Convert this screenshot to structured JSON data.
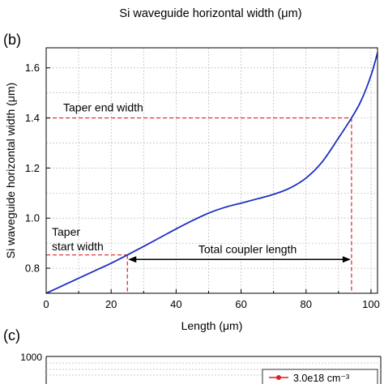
{
  "top_fragment": {
    "xlabel": "Si waveguide horizontal width (μm)"
  },
  "panel_b": {
    "label": "(b)",
    "annotations": {
      "taper_end": "Taper end width",
      "taper_start_line1": "Taper",
      "taper_start_line2": "start width",
      "total_length": "Total coupler length"
    }
  },
  "panel_c": {
    "label": "(c)",
    "y_tick_top": "1000",
    "legend_entry": "3.0e18 cm⁻³"
  },
  "colors": {
    "curve": "#1f2fbf",
    "guide": "#e02020",
    "grid": "#b8b8b8",
    "arrow": "#000000"
  },
  "chart_data": {
    "type": "line",
    "xlabel": "Length (μm)",
    "ylabel": "Si waveguide horizontal width (μm)",
    "xlim": [
      0,
      102
    ],
    "ylim": [
      0.7,
      1.68
    ],
    "x_ticks": [
      0,
      20,
      40,
      60,
      80,
      100
    ],
    "y_ticks": [
      0.8,
      1.0,
      1.2,
      1.4,
      1.6
    ],
    "x_tick_labels": [
      "0",
      "20",
      "40",
      "60",
      "80",
      "100"
    ],
    "y_tick_labels": [
      "0.8",
      "1.0",
      "1.2",
      "1.4",
      "1.6"
    ],
    "grid": true,
    "series": [
      {
        "x": [
          0,
          5,
          10,
          15,
          20,
          25,
          30,
          35,
          40,
          45,
          50,
          55,
          60,
          65,
          70,
          75,
          80,
          85,
          90,
          94,
          97,
          100,
          102
        ],
        "y": [
          0.7,
          0.73,
          0.76,
          0.79,
          0.82,
          0.853,
          0.887,
          0.922,
          0.957,
          0.99,
          1.02,
          1.043,
          1.06,
          1.077,
          1.095,
          1.12,
          1.16,
          1.225,
          1.32,
          1.4,
          1.47,
          1.57,
          1.66
        ]
      }
    ],
    "guides": {
      "taper_end": {
        "x": 94,
        "y": 1.4
      },
      "taper_start": {
        "x": 25,
        "y": 0.853
      },
      "arrow_y": 0.835
    }
  }
}
